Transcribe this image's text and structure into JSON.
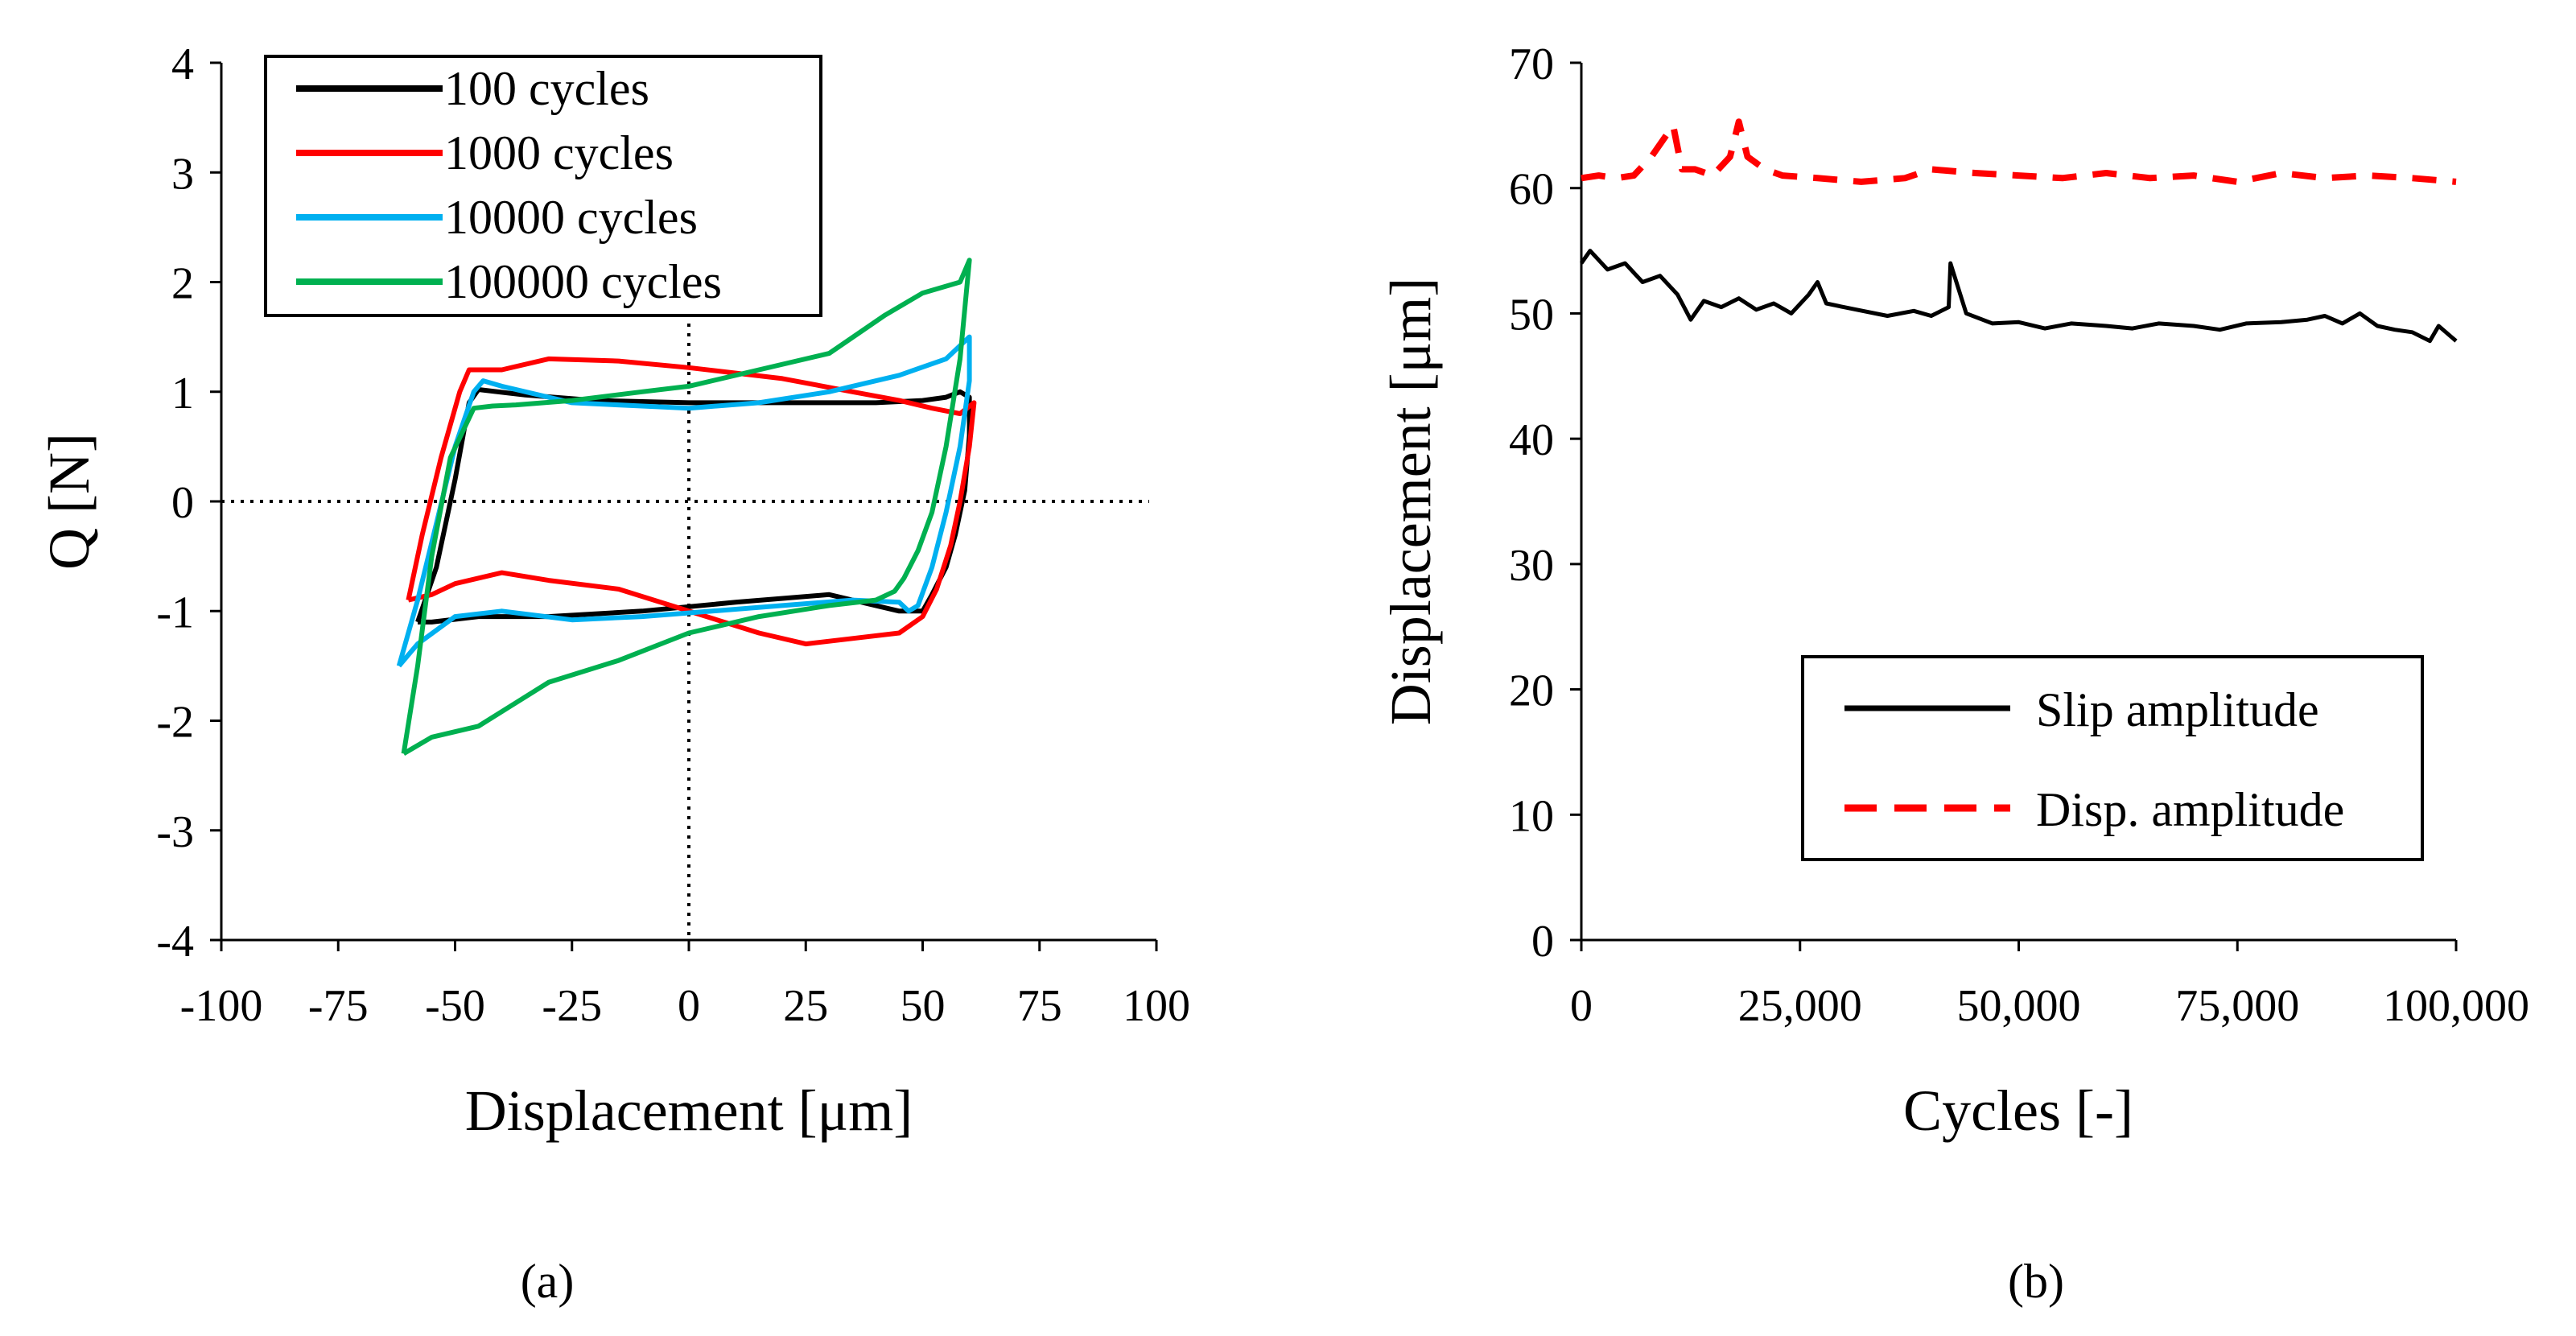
{
  "chart_data": [
    {
      "panel": "(a)",
      "type": "line",
      "xlabel": "Displacement [μm]",
      "ylabel": "Q [N]",
      "xlim": [
        -100,
        100
      ],
      "ylim": [
        -4,
        4
      ],
      "xticks": [
        -100,
        -75,
        -50,
        -25,
        0,
        25,
        50,
        75,
        100
      ],
      "yticks": [
        -4,
        -3,
        -2,
        -1,
        0,
        1,
        2,
        3,
        4
      ],
      "xtick_labels": [
        "-100",
        "-75",
        "-50",
        "-25",
        "0",
        "25",
        "50",
        "75",
        "100"
      ],
      "ytick_labels": [
        "-4",
        "-3",
        "-2",
        "-1",
        "0",
        "1",
        "2",
        "3",
        "4"
      ],
      "reference_lines": {
        "x": 0,
        "y": 0,
        "style": "dotted"
      },
      "legend_position": "top-left",
      "series": [
        {
          "name": "100 cycles",
          "color": "#000000",
          "x": [
            -58,
            -54,
            -50,
            -47,
            -45,
            -35,
            -20,
            0,
            20,
            40,
            50,
            55,
            58,
            60,
            60,
            59,
            57,
            55,
            52,
            50,
            45,
            30,
            10,
            -10,
            -30,
            -45,
            -55,
            -58
          ],
          "y": [
            -1.1,
            -0.6,
            0.2,
            0.9,
            1.02,
            0.97,
            0.92,
            0.9,
            0.9,
            0.9,
            0.92,
            0.95,
            1.0,
            0.95,
            0.6,
            0.1,
            -0.3,
            -0.6,
            -0.85,
            -1.0,
            -1.0,
            -0.85,
            -0.92,
            -1.0,
            -1.05,
            -1.05,
            -1.1,
            -1.1
          ]
        },
        {
          "name": "1000 cycles",
          "color": "#ff0000",
          "x": [
            -60,
            -57,
            -53,
            -49,
            -47,
            -40,
            -30,
            -15,
            0,
            20,
            35,
            45,
            52,
            58,
            61,
            60,
            58,
            56,
            53,
            50,
            45,
            35,
            25,
            15,
            0,
            -15,
            -30,
            -40,
            -50,
            -55,
            -60
          ],
          "y": [
            -0.9,
            -0.3,
            0.4,
            1.0,
            1.2,
            1.2,
            1.3,
            1.28,
            1.22,
            1.12,
            1.0,
            0.92,
            0.85,
            0.8,
            0.9,
            0.5,
            0.0,
            -0.4,
            -0.8,
            -1.05,
            -1.2,
            -1.25,
            -1.3,
            -1.2,
            -1.0,
            -0.8,
            -0.72,
            -0.65,
            -0.75,
            -0.85,
            -0.9
          ]
        },
        {
          "name": "10000 cycles",
          "color": "#00b0f0",
          "x": [
            -62,
            -58,
            -54,
            -50,
            -46,
            -44,
            -40,
            -25,
            -10,
            0,
            15,
            30,
            45,
            55,
            60,
            60,
            58,
            55,
            52,
            49,
            47,
            45,
            35,
            20,
            5,
            -10,
            -25,
            -40,
            -50,
            -58,
            -62
          ],
          "y": [
            -1.5,
            -0.9,
            -0.2,
            0.5,
            1.0,
            1.1,
            1.05,
            0.9,
            0.87,
            0.85,
            0.9,
            1.0,
            1.15,
            1.3,
            1.5,
            1.1,
            0.5,
            -0.1,
            -0.6,
            -0.95,
            -1.0,
            -0.92,
            -0.9,
            -0.95,
            -1.0,
            -1.05,
            -1.08,
            -1.0,
            -1.05,
            -1.3,
            -1.5
          ]
        },
        {
          "name": "100000 cycles",
          "color": "#00b050",
          "x": [
            -61,
            -58,
            -55,
            -51,
            -46,
            -42,
            -37,
            -25,
            -10,
            0,
            15,
            30,
            42,
            50,
            58,
            60,
            58,
            55,
            52,
            49,
            46,
            44,
            40,
            30,
            15,
            0,
            -15,
            -30,
            -45,
            -55,
            -61
          ],
          "y": [
            -2.3,
            -1.5,
            -0.5,
            0.4,
            0.85,
            0.87,
            0.88,
            0.92,
            1.0,
            1.05,
            1.2,
            1.35,
            1.7,
            1.9,
            2.0,
            2.2,
            1.3,
            0.5,
            -0.1,
            -0.45,
            -0.7,
            -0.82,
            -0.9,
            -0.95,
            -1.05,
            -1.2,
            -1.45,
            -1.65,
            -2.05,
            -2.15,
            -2.3
          ]
        }
      ]
    },
    {
      "panel": "(b)",
      "type": "line",
      "xlabel": "Cycles [-]",
      "ylabel": "Displacement [μm]",
      "xlim": [
        0,
        100000
      ],
      "ylim": [
        0,
        70
      ],
      "xticks": [
        0,
        25000,
        50000,
        75000,
        100000
      ],
      "yticks": [
        0,
        10,
        20,
        30,
        40,
        50,
        60,
        70
      ],
      "xtick_labels": [
        "0",
        "25,000",
        "50,000",
        "75,000",
        "100,000"
      ],
      "ytick_labels": [
        "0",
        "10",
        "20",
        "30",
        "40",
        "50",
        "60",
        "70"
      ],
      "legend_position": "bottom-right",
      "series": [
        {
          "name": "Slip amplitude",
          "color": "#000000",
          "style": "solid",
          "x": [
            0,
            1000,
            3000,
            5000,
            7000,
            9000,
            11000,
            12500,
            14000,
            16000,
            18000,
            20000,
            22000,
            24000,
            26000,
            27000,
            28000,
            30000,
            35000,
            38000,
            40000,
            42000,
            42200,
            44000,
            47000,
            50000,
            53000,
            56000,
            60000,
            63000,
            66000,
            70000,
            73000,
            76000,
            80000,
            83000,
            85000,
            87000,
            89000,
            91000,
            93000,
            95000,
            97000,
            98000,
            100000
          ],
          "y": [
            54,
            55,
            53.5,
            54,
            52.5,
            53,
            51.5,
            49.5,
            51,
            50.5,
            51.2,
            50.3,
            50.8,
            50,
            51.5,
            52.5,
            50.8,
            50.5,
            49.8,
            50.2,
            49.8,
            50.5,
            54,
            50,
            49.2,
            49.3,
            48.8,
            49.2,
            49,
            48.8,
            49.2,
            49,
            48.7,
            49.2,
            49.3,
            49.5,
            49.8,
            49.2,
            50,
            49,
            48.7,
            48.5,
            47.8,
            49,
            47.8
          ]
        },
        {
          "name": "Disp. amplitude",
          "color": "#ff0000",
          "style": "dashed",
          "x": [
            0,
            2000,
            4000,
            6000,
            8000,
            9500,
            10500,
            11500,
            13000,
            15000,
            17000,
            18000,
            19000,
            21000,
            23000,
            27000,
            32000,
            37000,
            40000,
            45000,
            50000,
            55000,
            60000,
            65000,
            70000,
            75000,
            80000,
            85000,
            90000,
            95000,
            100000
          ],
          "y": [
            60.8,
            61,
            60.8,
            61,
            62.5,
            64,
            65,
            61.5,
            61.5,
            61,
            62.5,
            65.3,
            62.5,
            61.5,
            61,
            60.8,
            60.5,
            60.8,
            61.5,
            61.2,
            61,
            60.8,
            61.2,
            60.8,
            61,
            60.5,
            61.2,
            60.8,
            61,
            60.8,
            60.5
          ]
        }
      ]
    }
  ]
}
